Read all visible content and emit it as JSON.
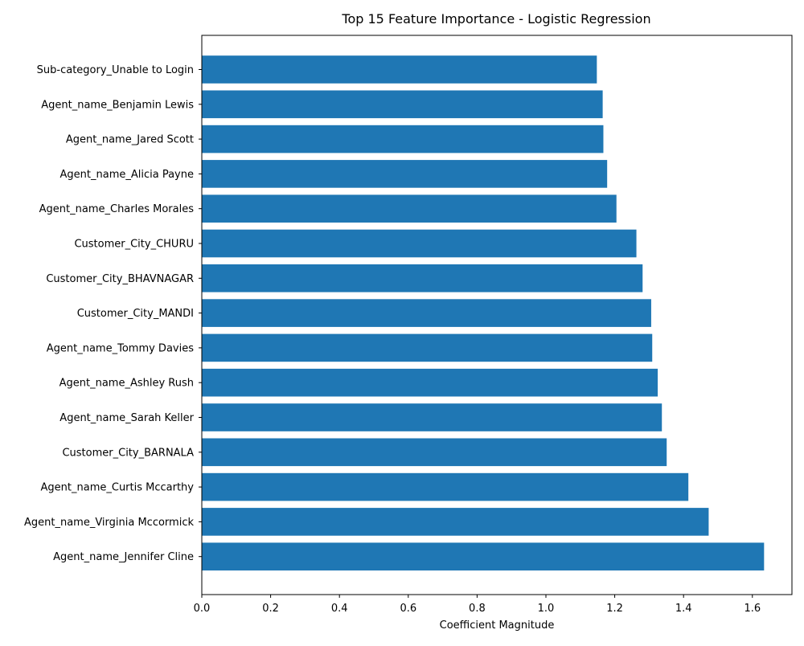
{
  "chart_data": {
    "type": "bar",
    "orientation": "horizontal",
    "title": "Top 15 Feature Importance - Logistic Regression",
    "xlabel": "Coefficient Magnitude",
    "ylabel": "",
    "xlim": [
      0,
      1.715
    ],
    "xticks": [
      0.0,
      0.2,
      0.4,
      0.6,
      0.8,
      1.0,
      1.2,
      1.4,
      1.6
    ],
    "xtick_labels": [
      "0.0",
      "0.2",
      "0.4",
      "0.6",
      "0.8",
      "1.0",
      "1.2",
      "1.4",
      "1.6"
    ],
    "grid": false,
    "bar_color": "#1f77b4",
    "categories": [
      "Sub-category_Unable to Login",
      "Agent_name_Benjamin Lewis",
      "Agent_name_Jared Scott",
      "Agent_name_Alicia Payne",
      "Agent_name_Charles Morales",
      "Customer_City_CHURU",
      "Customer_City_BHAVNAGAR",
      "Customer_City_MANDI",
      "Agent_name_Tommy Davies",
      "Agent_name_Ashley Rush",
      "Agent_name_Sarah Keller",
      "Customer_City_BARNALA",
      "Agent_name_Curtis Mccarthy",
      "Agent_name_Virginia Mccormick",
      "Agent_name_Jennifer Cline"
    ],
    "values": [
      1.148,
      1.165,
      1.167,
      1.178,
      1.205,
      1.263,
      1.281,
      1.306,
      1.309,
      1.325,
      1.337,
      1.351,
      1.414,
      1.473,
      1.634
    ]
  }
}
